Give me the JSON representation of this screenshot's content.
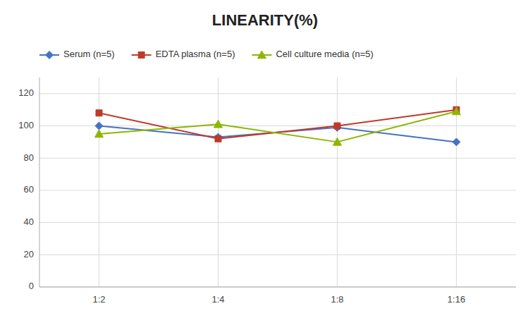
{
  "chart_data": {
    "type": "line",
    "title": "LINEARITY(%)",
    "categories": [
      "1:2",
      "1:4",
      "1:8",
      "1:16"
    ],
    "series": [
      {
        "name": "Serum (n=5)",
        "color": "#4472C4",
        "marker": "diamond",
        "values": [
          100,
          93,
          99,
          90
        ]
      },
      {
        "name": "EDTA plasma (n=5)",
        "color": "#BE3B2A",
        "marker": "square",
        "values": [
          108,
          92,
          100,
          110
        ]
      },
      {
        "name": "Cell culture media (n=5)",
        "color": "#8DB600",
        "marker": "triangle",
        "values": [
          95,
          101,
          90,
          109
        ]
      }
    ],
    "ylim": [
      0,
      130
    ],
    "yticks": [
      0,
      20,
      40,
      60,
      80,
      100,
      120
    ],
    "grid": true,
    "legend": "top"
  }
}
